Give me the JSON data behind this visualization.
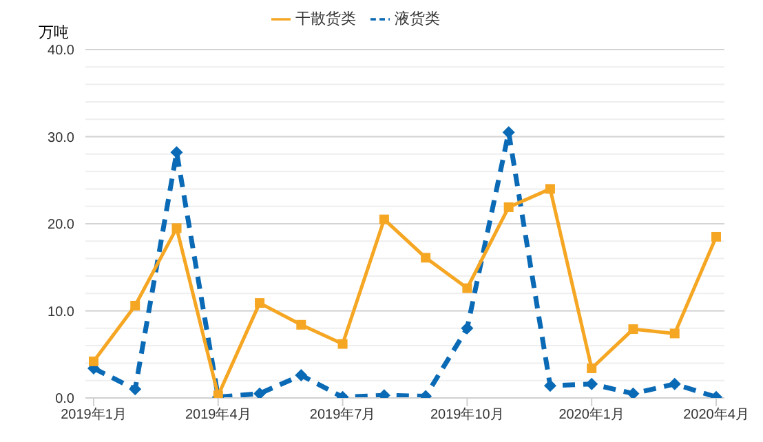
{
  "chart_data": {
    "type": "line",
    "ylabel": "万吨",
    "categories": [
      "2019年1月",
      null,
      null,
      "2019年4月",
      null,
      null,
      "2019年7月",
      null,
      null,
      "2019年10月",
      null,
      null,
      "2020年1月",
      null,
      null,
      "2020年4月"
    ],
    "series": [
      {
        "name": "干散货类",
        "color": "#f5a623",
        "marker": "square",
        "line_style": "solid",
        "values": [
          4.2,
          10.6,
          19.5,
          0.3,
          10.9,
          8.4,
          6.2,
          20.5,
          16.1,
          12.6,
          21.9,
          24.0,
          3.4,
          7.9,
          7.4,
          18.5
        ]
      },
      {
        "name": "液货类",
        "color": "#0a6ab5",
        "marker": "diamond",
        "line_style": "dashed",
        "values": [
          3.4,
          1.0,
          28.2,
          0.1,
          0.5,
          2.6,
          0.1,
          0.3,
          0.2,
          8.0,
          30.5,
          1.4,
          1.6,
          0.5,
          1.6,
          0.1
        ]
      }
    ],
    "ylim": [
      0,
      40
    ],
    "yticks": [
      {
        "value": 0,
        "label": "0.0"
      },
      {
        "value": 2,
        "label": null
      },
      {
        "value": 4,
        "label": null
      },
      {
        "value": 6,
        "label": null
      },
      {
        "value": 8,
        "label": null
      },
      {
        "value": 10,
        "label": "10.0"
      },
      {
        "value": 12,
        "label": null
      },
      {
        "value": 14,
        "label": null
      },
      {
        "value": 16,
        "label": null
      },
      {
        "value": 18,
        "label": null
      },
      {
        "value": 20,
        "label": "20.0"
      },
      {
        "value": 22,
        "label": null
      },
      {
        "value": 24,
        "label": null
      },
      {
        "value": 26,
        "label": null
      },
      {
        "value": 28,
        "label": null
      },
      {
        "value": 30,
        "label": "30.0"
      },
      {
        "value": 32,
        "label": null
      },
      {
        "value": 34,
        "label": null
      },
      {
        "value": 36,
        "label": null
      },
      {
        "value": 38,
        "label": null
      },
      {
        "value": 40,
        "label": "40.0"
      }
    ],
    "grid": "y",
    "legend": "top"
  }
}
